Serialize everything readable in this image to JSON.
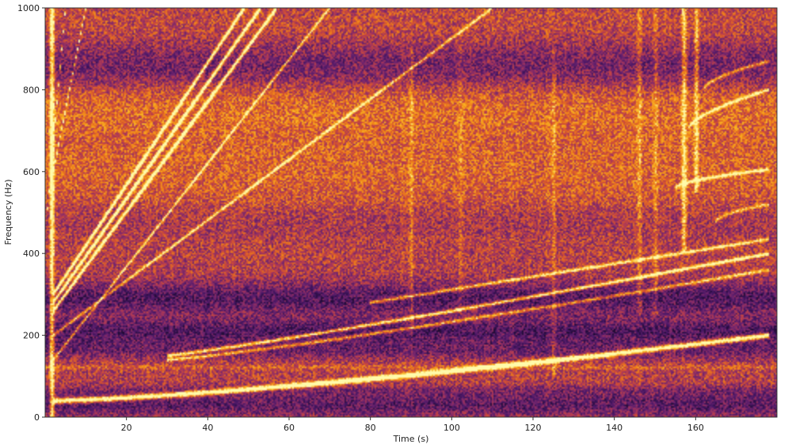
{
  "chart_data": {
    "type": "heatmap",
    "subtype": "spectrogram",
    "title": "",
    "xlabel": "Time (s)",
    "ylabel": "Frequency (Hz)",
    "xlim": [
      0,
      180
    ],
    "ylim": [
      0,
      1000
    ],
    "x_ticks": [
      20,
      40,
      60,
      80,
      100,
      120,
      140,
      160
    ],
    "y_ticks": [
      0,
      200,
      400,
      600,
      800,
      1000
    ],
    "grid": false,
    "legend": "none",
    "colormap": "inferno",
    "colors": {
      "low": "#5a1e6e",
      "mid": "#c44a3a",
      "high": "#f08a1c",
      "peak": "#fff08a"
    },
    "background_level": 0.5,
    "horizontal_bands": [
      {
        "freq": 30,
        "width": 30,
        "level": 0.25
      },
      {
        "freq": 58,
        "width": 16,
        "level": 0.35
      },
      {
        "freq": 122,
        "width": 6,
        "level": 0.62
      },
      {
        "freq": 165,
        "width": 22,
        "level": 0.3
      },
      {
        "freq": 210,
        "width": 30,
        "level": 0.22
      },
      {
        "freq": 290,
        "width": 40,
        "level": 0.22
      },
      {
        "freq": 480,
        "width": 40,
        "level": 0.42
      },
      {
        "freq": 610,
        "width": 120,
        "level": 0.62
      },
      {
        "freq": 760,
        "width": 60,
        "level": 0.66
      },
      {
        "freq": 860,
        "width": 60,
        "level": 0.28
      },
      {
        "freq": 950,
        "width": 60,
        "level": 0.55
      }
    ],
    "chirps": [
      {
        "name": "",
        "t0": 2,
        "f0": 40,
        "t1": 178,
        "f1": 200,
        "curve": 1.35,
        "intensity": 0.92,
        "width": 3
      },
      {
        "name": "",
        "t0": 30,
        "f0": 150,
        "t1": 178,
        "f1": 400,
        "curve": 1.1,
        "intensity": 0.72,
        "width": 2
      },
      {
        "name": "",
        "t0": 30,
        "f0": 140,
        "t1": 178,
        "f1": 360,
        "curve": 1.15,
        "intensity": 0.5,
        "width": 2
      },
      {
        "name": "",
        "t0": 80,
        "f0": 280,
        "t1": 178,
        "f1": 435,
        "curve": 1.0,
        "intensity": 0.55,
        "width": 2
      },
      {
        "name": "",
        "t0": 2,
        "f0": 140,
        "t1": 70,
        "f1": 1000,
        "curve": 1.0,
        "intensity": 0.55,
        "width": 2
      },
      {
        "name": "",
        "t0": 2,
        "f0": 200,
        "t1": 110,
        "f1": 1000,
        "curve": 1.0,
        "intensity": 0.5,
        "width": 2
      },
      {
        "name": "",
        "t0": 2,
        "f0": 260,
        "t1": 57,
        "f1": 1000,
        "curve": 1.0,
        "intensity": 0.9,
        "width": 3
      },
      {
        "name": "",
        "t0": 2,
        "f0": 280,
        "t1": 53,
        "f1": 1000,
        "curve": 1.0,
        "intensity": 0.95,
        "width": 3
      },
      {
        "name": "",
        "t0": 2,
        "f0": 300,
        "t1": 49,
        "f1": 1000,
        "curve": 1.0,
        "intensity": 0.9,
        "width": 3
      },
      {
        "name": "",
        "t0": 2,
        "f0": 600,
        "t1": 10,
        "f1": 1000,
        "curve": 1.0,
        "intensity": 0.7,
        "width": 2
      },
      {
        "name": "",
        "t0": 0.5,
        "f0": 500,
        "t1": 5,
        "f1": 1000,
        "curve": 1.0,
        "intensity": 0.7,
        "width": 2
      },
      {
        "name": "",
        "t0": 155,
        "f0": 560,
        "t1": 178,
        "f1": 605,
        "curve": 0.6,
        "intensity": 0.55,
        "width": 2
      },
      {
        "name": "",
        "t0": 158,
        "f0": 700,
        "t1": 178,
        "f1": 800,
        "curve": 0.6,
        "intensity": 0.55,
        "width": 2
      },
      {
        "name": "",
        "t0": 162,
        "f0": 800,
        "t1": 178,
        "f1": 870,
        "curve": 0.6,
        "intensity": 0.45,
        "width": 2
      },
      {
        "name": "",
        "t0": 165,
        "f0": 480,
        "t1": 178,
        "f1": 520,
        "curve": 0.6,
        "intensity": 0.4,
        "width": 2
      }
    ],
    "vertical_streaks": [
      {
        "t": 1.5,
        "f_min": 0,
        "f_max": 1000,
        "intensity": 0.75
      },
      {
        "t": 90,
        "f_min": 200,
        "f_max": 900,
        "intensity": 0.18
      },
      {
        "t": 102,
        "f_min": 250,
        "f_max": 950,
        "intensity": 0.15
      },
      {
        "t": 125,
        "f_min": 100,
        "f_max": 900,
        "intensity": 0.2
      },
      {
        "t": 146,
        "f_min": 250,
        "f_max": 1000,
        "intensity": 0.22
      },
      {
        "t": 150,
        "f_min": 250,
        "f_max": 1000,
        "intensity": 0.2
      },
      {
        "t": 157,
        "f_min": 400,
        "f_max": 1000,
        "intensity": 0.5
      },
      {
        "t": 160,
        "f_min": 550,
        "f_max": 1000,
        "intensity": 0.45
      }
    ]
  }
}
